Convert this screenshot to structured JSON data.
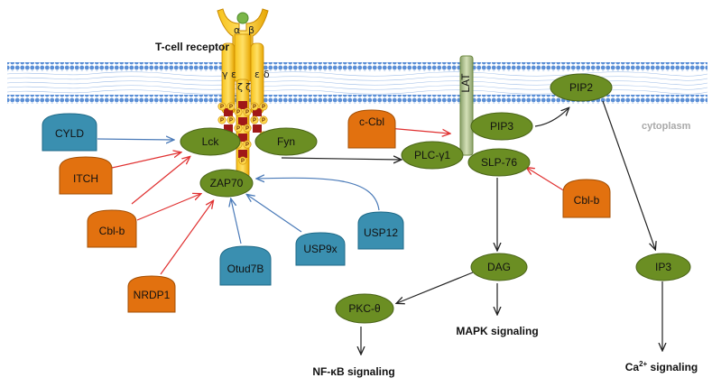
{
  "receptor": {
    "title": "T-cell receptor",
    "alpha": "α",
    "beta": "β",
    "gamma": "γ",
    "epsilon_left": "ε",
    "epsilon_right": "ε",
    "delta": "δ",
    "zeta_left": "ζ",
    "zeta_right": "ζ",
    "phospho": "P"
  },
  "labels": {
    "cytoplasm": "cytoplasm",
    "lat": "LAT"
  },
  "nodes": {
    "lck": "Lck",
    "fyn": "Fyn",
    "zap70": "ZAP70",
    "plc": "PLC-γ1",
    "pip3": "PIP3",
    "slp76": "SLP-76",
    "pip2": "PIP2",
    "dag": "DAG",
    "ip3": "IP3",
    "pkc": "PKC-θ"
  },
  "regulators": {
    "cyld": "CYLD",
    "itch": "ITCH",
    "cblb_left": "Cbl-b",
    "nrdp1": "NRDP1",
    "otud7b": "Otud7B",
    "usp9x": "USP9x",
    "usp12": "USP12",
    "ccbl": "c-Cbl",
    "cblb_right": "Cbl-b"
  },
  "outcomes": {
    "nfkb": "NF-κB signaling",
    "mapk": "MAPK signaling",
    "ca_prefix": "Ca",
    "ca_sup": "2+",
    "ca_suffix": " signaling"
  },
  "colors": {
    "membrane_head": "#5b8fd6",
    "kinase_green": "#6b8e23",
    "kinase_dark": "#4a6418",
    "ubiquitin_ligase": "#e2710f",
    "deubiquitinase": "#3a8fb0",
    "activation_arrow": "#e03030",
    "deub_arrow": "#4a7ab8",
    "receptor_gold": "#f2b500",
    "receptor_red": "#a01818"
  }
}
